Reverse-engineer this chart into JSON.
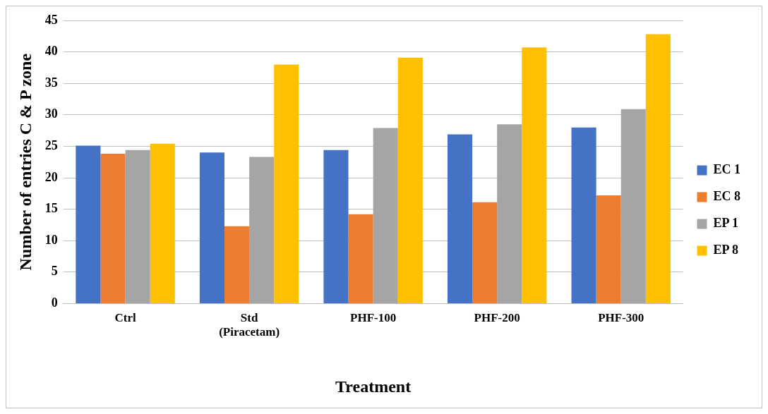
{
  "chart_data": {
    "type": "bar",
    "xlabel": "Treatment",
    "ylabel": "Number of entries C & P zone",
    "categories": [
      "Ctrl",
      "Std (Piracetam)",
      "PHF-100",
      "PHF-200",
      "PHF-300"
    ],
    "series": [
      {
        "name": "EC 1",
        "color": "#4472c4",
        "values": [
          25.1,
          24.0,
          24.4,
          26.9,
          28.0
        ]
      },
      {
        "name": "EC 8",
        "color": "#ed7d31",
        "values": [
          23.8,
          12.3,
          14.2,
          16.1,
          17.2
        ]
      },
      {
        "name": "EP 1",
        "color": "#a5a5a5",
        "values": [
          24.4,
          23.3,
          27.9,
          28.5,
          30.9
        ]
      },
      {
        "name": "EP 8",
        "color": "#ffc000",
        "values": [
          25.4,
          38.0,
          39.1,
          40.7,
          42.8
        ]
      }
    ],
    "ylim": [
      0,
      45
    ],
    "yticks": [
      0,
      5,
      10,
      15,
      20,
      25,
      30,
      35,
      40,
      45
    ],
    "grid": "y",
    "legend": "right"
  }
}
